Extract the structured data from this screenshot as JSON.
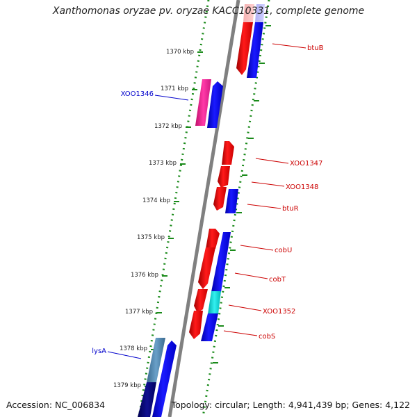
{
  "title": "Xanthomonas oryzae pv. oryzae KACC10331, complete genome",
  "footer": {
    "accession": "Accession: NC_006834",
    "summary": "Topology: circular; Length: 4,941,439 bp; Genes: 4,122"
  },
  "colors": {
    "backbone": "#808080",
    "tick": "#1a8a1a",
    "gene_forward": "#ff0000",
    "gene_reverse": "#0000ff",
    "label_red": "#cc0000",
    "label_blue": "#0000cc"
  },
  "scale_labels": [
    "1370 kbp",
    "1371 kbp",
    "1372 kbp",
    "1373 kbp",
    "1374 kbp",
    "1375 kbp",
    "1376 kbp",
    "1377 kbp",
    "1378 kbp",
    "1379 kbp"
  ],
  "gene_labels": {
    "btuB": "btuB",
    "XOO1346": "XOO1346",
    "XOO1347": "XOO1347",
    "XOO1348": "XOO1348",
    "btuR": "btuR",
    "cobU": "cobU",
    "cobT": "cobT",
    "XOO1352": "XOO1352",
    "cobS": "cobS",
    "lysA": "lysA"
  }
}
